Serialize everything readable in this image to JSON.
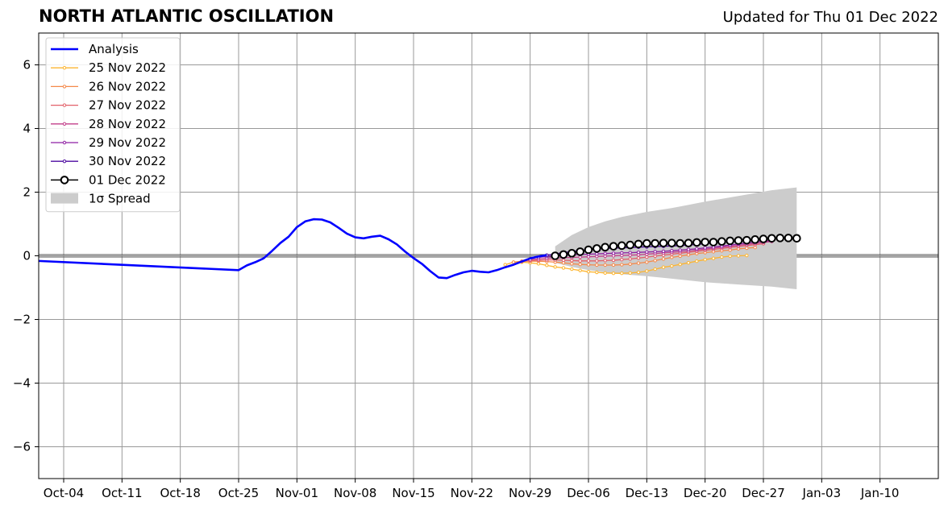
{
  "header": {
    "title": "NORTH ATLANTIC OSCILLATION",
    "updated": "Updated for Thu 01 Dec 2022"
  },
  "chart_data": {
    "type": "line",
    "title": "NORTH ATLANTIC OSCILLATION",
    "subtitle": "Updated for Thu 01 Dec 2022",
    "x_unit": "date",
    "xlim": [
      "2022-10-01",
      "2023-01-17"
    ],
    "ylim": [
      -7,
      7
    ],
    "x_ticks": [
      "2022-10-04",
      "2022-10-11",
      "2022-10-18",
      "2022-10-25",
      "2022-11-01",
      "2022-11-08",
      "2022-11-15",
      "2022-11-22",
      "2022-11-29",
      "2022-12-06",
      "2022-12-13",
      "2022-12-20",
      "2022-12-27",
      "2023-01-03",
      "2023-01-10"
    ],
    "x_tick_labels": [
      "Oct-04",
      "Oct-11",
      "Oct-18",
      "Oct-25",
      "Nov-01",
      "Nov-08",
      "Nov-15",
      "Nov-22",
      "Nov-29",
      "Dec-06",
      "Dec-13",
      "Dec-20",
      "Dec-27",
      "Jan-03",
      "Jan-10"
    ],
    "y_ticks": [
      -6,
      -4,
      -2,
      0,
      2,
      4,
      6
    ],
    "y_tick_labels": [
      "−6",
      "−4",
      "−2",
      "0",
      "2",
      "4",
      "6"
    ],
    "grid": true,
    "zero_line": true,
    "legend_position": "top-left",
    "legend": [
      {
        "label": "Analysis",
        "color": "#0000ff",
        "style": "line"
      },
      {
        "label": "25 Nov 2022",
        "color": "#fcb531",
        "style": "marker"
      },
      {
        "label": "26 Nov 2022",
        "color": "#f5894a",
        "style": "marker"
      },
      {
        "label": "27 Nov 2022",
        "color": "#e2616a",
        "style": "marker"
      },
      {
        "label": "28 Nov 2022",
        "color": "#c23f8a",
        "style": "marker"
      },
      {
        "label": "29 Nov 2022",
        "color": "#8e1fa3",
        "style": "marker"
      },
      {
        "label": "30 Nov 2022",
        "color": "#4c0aa0",
        "style": "marker"
      },
      {
        "label": "01 Dec 2022",
        "color": "#000000",
        "style": "big-marker"
      },
      {
        "label": "1σ Spread",
        "color": "#cccccc",
        "style": "patch"
      }
    ],
    "series": [
      {
        "name": "Analysis",
        "color": "#0000ff",
        "marker": "none",
        "x": [
          "2022-09-30",
          "2022-10-25",
          "2022-10-26",
          "2022-10-27",
          "2022-10-28",
          "2022-10-29",
          "2022-10-30",
          "2022-10-31",
          "2022-11-01",
          "2022-11-02",
          "2022-11-03",
          "2022-11-04",
          "2022-11-05",
          "2022-11-06",
          "2022-11-07",
          "2022-11-08",
          "2022-11-09",
          "2022-11-10",
          "2022-11-11",
          "2022-11-12",
          "2022-11-13",
          "2022-11-14",
          "2022-11-15",
          "2022-11-16",
          "2022-11-17",
          "2022-11-18",
          "2022-11-19",
          "2022-11-20",
          "2022-11-21",
          "2022-11-22",
          "2022-11-23",
          "2022-11-24",
          "2022-11-25",
          "2022-11-26",
          "2022-11-27",
          "2022-11-28",
          "2022-11-29",
          "2022-11-30",
          "2022-12-01"
        ],
        "y": [
          -0.15,
          -0.45,
          -0.3,
          -0.2,
          -0.08,
          0.15,
          0.4,
          0.6,
          0.9,
          1.08,
          1.15,
          1.14,
          1.05,
          0.88,
          0.7,
          0.58,
          0.55,
          0.6,
          0.63,
          0.52,
          0.36,
          0.13,
          -0.07,
          -0.25,
          -0.48,
          -0.68,
          -0.7,
          -0.6,
          -0.52,
          -0.47,
          -0.5,
          -0.52,
          -0.45,
          -0.36,
          -0.28,
          -0.18,
          -0.08,
          -0.02,
          0.02
        ]
      },
      {
        "name": "25 Nov 2022",
        "color": "#fcb531",
        "marker": "small",
        "x": [
          "2022-11-26",
          "2022-11-27",
          "2022-11-28",
          "2022-11-29",
          "2022-11-30",
          "2022-12-01",
          "2022-12-02",
          "2022-12-03",
          "2022-12-04",
          "2022-12-05",
          "2022-12-06",
          "2022-12-07",
          "2022-12-08",
          "2022-12-09",
          "2022-12-10",
          "2022-12-11",
          "2022-12-12",
          "2022-12-13",
          "2022-12-14",
          "2022-12-15",
          "2022-12-16",
          "2022-12-17",
          "2022-12-18",
          "2022-12-19",
          "2022-12-20",
          "2022-12-21",
          "2022-12-22",
          "2022-12-23",
          "2022-12-24",
          "2022-12-25"
        ],
        "y": [
          -0.28,
          -0.2,
          -0.2,
          -0.22,
          -0.25,
          -0.3,
          -0.35,
          -0.38,
          -0.42,
          -0.46,
          -0.5,
          -0.52,
          -0.54,
          -0.55,
          -0.55,
          -0.54,
          -0.52,
          -0.48,
          -0.42,
          -0.36,
          -0.32,
          -0.27,
          -0.22,
          -0.17,
          -0.12,
          -0.08,
          -0.04,
          -0.01,
          0.0,
          0.01
        ]
      },
      {
        "name": "26 Nov 2022",
        "color": "#f5894a",
        "marker": "small",
        "x": [
          "2022-11-27",
          "2022-11-28",
          "2022-11-29",
          "2022-11-30",
          "2022-12-01",
          "2022-12-02",
          "2022-12-03",
          "2022-12-04",
          "2022-12-05",
          "2022-12-06",
          "2022-12-07",
          "2022-12-08",
          "2022-12-09",
          "2022-12-10",
          "2022-12-11",
          "2022-12-12",
          "2022-12-13",
          "2022-12-14",
          "2022-12-15",
          "2022-12-16",
          "2022-12-17",
          "2022-12-18",
          "2022-12-19",
          "2022-12-20",
          "2022-12-21",
          "2022-12-22",
          "2022-12-23",
          "2022-12-24",
          "2022-12-25",
          "2022-12-26"
        ],
        "y": [
          -0.2,
          -0.17,
          -0.17,
          -0.17,
          -0.18,
          -0.2,
          -0.22,
          -0.25,
          -0.27,
          -0.28,
          -0.29,
          -0.29,
          -0.29,
          -0.28,
          -0.26,
          -0.23,
          -0.2,
          -0.15,
          -0.1,
          -0.05,
          -0.01,
          0.03,
          0.07,
          0.1,
          0.13,
          0.16,
          0.18,
          0.22,
          0.24,
          0.26
        ]
      },
      {
        "name": "27 Nov 2022",
        "color": "#e2616a",
        "marker": "small",
        "x": [
          "2022-11-28",
          "2022-11-29",
          "2022-11-30",
          "2022-12-01",
          "2022-12-02",
          "2022-12-03",
          "2022-12-04",
          "2022-12-05",
          "2022-12-06",
          "2022-12-07",
          "2022-12-08",
          "2022-12-09",
          "2022-12-10",
          "2022-12-11",
          "2022-12-12",
          "2022-12-13",
          "2022-12-14",
          "2022-12-15",
          "2022-12-16",
          "2022-12-17",
          "2022-12-18",
          "2022-12-19",
          "2022-12-20",
          "2022-12-21",
          "2022-12-22",
          "2022-12-23",
          "2022-12-24",
          "2022-12-25",
          "2022-12-26",
          "2022-12-27"
        ],
        "y": [
          -0.18,
          -0.15,
          -0.14,
          -0.13,
          -0.13,
          -0.14,
          -0.15,
          -0.16,
          -0.16,
          -0.16,
          -0.15,
          -0.14,
          -0.12,
          -0.1,
          -0.07,
          -0.04,
          -0.01,
          0.02,
          0.05,
          0.08,
          0.11,
          0.14,
          0.17,
          0.2,
          0.23,
          0.26,
          0.29,
          0.32,
          0.35,
          0.38
        ]
      },
      {
        "name": "28 Nov 2022",
        "color": "#c23f8a",
        "marker": "small",
        "x": [
          "2022-11-29",
          "2022-11-30",
          "2022-12-01",
          "2022-12-02",
          "2022-12-03",
          "2022-12-04",
          "2022-12-05",
          "2022-12-06",
          "2022-12-07",
          "2022-12-08",
          "2022-12-09",
          "2022-12-10",
          "2022-12-11",
          "2022-12-12",
          "2022-12-13",
          "2022-12-14",
          "2022-12-15",
          "2022-12-16",
          "2022-12-17",
          "2022-12-18",
          "2022-12-19",
          "2022-12-20",
          "2022-12-21",
          "2022-12-22",
          "2022-12-23",
          "2022-12-24",
          "2022-12-25",
          "2022-12-26",
          "2022-12-27",
          "2022-12-28"
        ],
        "y": [
          -0.12,
          -0.1,
          -0.08,
          -0.07,
          -0.06,
          -0.05,
          -0.04,
          -0.03,
          -0.02,
          -0.01,
          0.0,
          0.01,
          0.02,
          0.03,
          0.05,
          0.07,
          0.09,
          0.11,
          0.13,
          0.15,
          0.18,
          0.21,
          0.24,
          0.27,
          0.3,
          0.33,
          0.36,
          0.39,
          0.42,
          0.45
        ]
      },
      {
        "name": "29 Nov 2022",
        "color": "#8e1fa3",
        "marker": "small",
        "x": [
          "2022-11-30",
          "2022-12-01",
          "2022-12-02",
          "2022-12-03",
          "2022-12-04",
          "2022-12-05",
          "2022-12-06",
          "2022-12-07",
          "2022-12-08",
          "2022-12-09",
          "2022-12-10",
          "2022-12-11",
          "2022-12-12",
          "2022-12-13",
          "2022-12-14",
          "2022-12-15",
          "2022-12-16",
          "2022-12-17",
          "2022-12-18",
          "2022-12-19",
          "2022-12-20",
          "2022-12-21",
          "2022-12-22",
          "2022-12-23",
          "2022-12-24",
          "2022-12-25",
          "2022-12-26",
          "2022-12-27",
          "2022-12-28"
        ],
        "y": [
          -0.05,
          -0.02,
          0.0,
          0.02,
          0.03,
          0.04,
          0.05,
          0.06,
          0.07,
          0.08,
          0.09,
          0.1,
          0.11,
          0.12,
          0.13,
          0.14,
          0.16,
          0.18,
          0.2,
          0.22,
          0.25,
          0.28,
          0.31,
          0.34,
          0.37,
          0.4,
          0.43,
          0.46,
          0.48
        ]
      },
      {
        "name": "30 Nov 2022",
        "color": "#4c0aa0",
        "marker": "small",
        "x": [
          "2022-12-01",
          "2022-12-02",
          "2022-12-03",
          "2022-12-04",
          "2022-12-05",
          "2022-12-06",
          "2022-12-07",
          "2022-12-08",
          "2022-12-09",
          "2022-12-10",
          "2022-12-11",
          "2022-12-12",
          "2022-12-13",
          "2022-12-14",
          "2022-12-15",
          "2022-12-16",
          "2022-12-17",
          "2022-12-18",
          "2022-12-19",
          "2022-12-20",
          "2022-12-21",
          "2022-12-22",
          "2022-12-23",
          "2022-12-24",
          "2022-12-25",
          "2022-12-26",
          "2022-12-27",
          "2022-12-28"
        ],
        "y": [
          0.02,
          0.06,
          0.1,
          0.14,
          0.17,
          0.2,
          0.22,
          0.23,
          0.24,
          0.25,
          0.26,
          0.27,
          0.28,
          0.29,
          0.3,
          0.31,
          0.32,
          0.34,
          0.36,
          0.38,
          0.4,
          0.42,
          0.44,
          0.46,
          0.48,
          0.5,
          0.52,
          0.54
        ]
      },
      {
        "name": "01 Dec 2022",
        "color": "#000000",
        "marker": "big",
        "x": [
          "2022-12-02",
          "2022-12-03",
          "2022-12-04",
          "2022-12-05",
          "2022-12-06",
          "2022-12-07",
          "2022-12-08",
          "2022-12-09",
          "2022-12-10",
          "2022-12-11",
          "2022-12-12",
          "2022-12-13",
          "2022-12-14",
          "2022-12-15",
          "2022-12-16",
          "2022-12-17",
          "2022-12-18",
          "2022-12-19",
          "2022-12-20",
          "2022-12-21",
          "2022-12-22",
          "2022-12-23",
          "2022-12-24",
          "2022-12-25",
          "2022-12-26",
          "2022-12-27",
          "2022-12-28",
          "2022-12-29",
          "2022-12-30",
          "2022-12-31"
        ],
        "y": [
          0.0,
          0.04,
          0.08,
          0.13,
          0.19,
          0.23,
          0.27,
          0.3,
          0.32,
          0.34,
          0.37,
          0.39,
          0.39,
          0.4,
          0.4,
          0.39,
          0.4,
          0.42,
          0.43,
          0.43,
          0.45,
          0.47,
          0.48,
          0.49,
          0.51,
          0.53,
          0.55,
          0.56,
          0.56,
          0.55
        ]
      }
    ],
    "spread": {
      "label": "1σ Spread",
      "color": "#cccccc",
      "x": [
        "2022-12-02",
        "2022-12-04",
        "2022-12-06",
        "2022-12-08",
        "2022-12-10",
        "2022-12-13",
        "2022-12-16",
        "2022-12-20",
        "2022-12-24",
        "2022-12-28",
        "2022-12-31"
      ],
      "upper": [
        0.3,
        0.65,
        0.9,
        1.08,
        1.22,
        1.38,
        1.5,
        1.7,
        1.88,
        2.06,
        2.15
      ],
      "lower": [
        -0.22,
        -0.35,
        -0.45,
        -0.52,
        -0.58,
        -0.64,
        -0.72,
        -0.83,
        -0.9,
        -0.97,
        -1.05
      ]
    }
  }
}
